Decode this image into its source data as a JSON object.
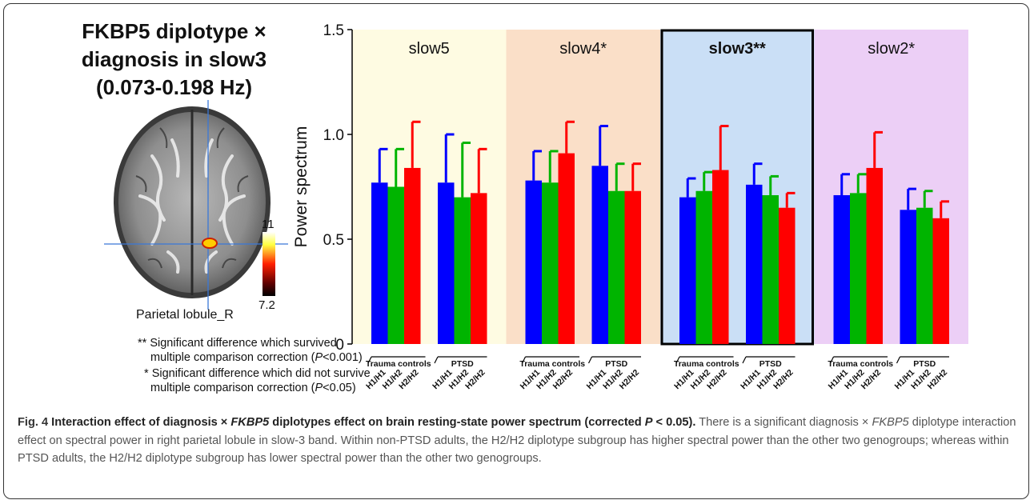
{
  "panel_title": [
    "FKBP5 diplotype ×",
    "diagnosis in slow3",
    "(0.073-0.198 Hz)"
  ],
  "region_label": "Parietal lobule_R",
  "colorbar": {
    "max": "11",
    "min": "7.2"
  },
  "notes": [
    {
      "mark": "**",
      "line1": "Significant difference which survived",
      "line2_prefix": "multiple comparison correction (",
      "p_symbol": "P",
      "p_rest": "<0.001)"
    },
    {
      "mark": "*",
      "line1": "Significant difference which did not survive",
      "line2_prefix": "multiple comparison correction (",
      "p_symbol": "P",
      "p_rest": "<0.05)"
    }
  ],
  "chart_data": {
    "type": "bar",
    "ylabel": "Power spectrum",
    "ylim": [
      0,
      1.5
    ],
    "yticks": [
      "0",
      "0.5",
      "1.0",
      "1.5"
    ],
    "group_labels": [
      "Trauma controls",
      "PTSD"
    ],
    "categories": [
      "H1/H1",
      "H1/H2",
      "H2/H2"
    ],
    "series_colors": [
      "#0000ff",
      "#00b400",
      "#ff0000"
    ],
    "panels": [
      {
        "band": "slow5",
        "marker": "",
        "highlight": false,
        "bg": "#fefbe2",
        "values": [
          [
            0.77,
            0.75,
            0.84
          ],
          [
            0.77,
            0.7,
            0.72
          ]
        ],
        "errors": [
          [
            0.16,
            0.18,
            0.22
          ],
          [
            0.23,
            0.26,
            0.21
          ]
        ]
      },
      {
        "band": "slow4",
        "marker": "*",
        "highlight": false,
        "bg": "#fadfc8",
        "values": [
          [
            0.78,
            0.77,
            0.91
          ],
          [
            0.85,
            0.73,
            0.73
          ]
        ],
        "errors": [
          [
            0.14,
            0.15,
            0.15
          ],
          [
            0.19,
            0.13,
            0.13
          ]
        ]
      },
      {
        "band": "slow3",
        "marker": "**",
        "highlight": true,
        "bg": "#cadff6",
        "values": [
          [
            0.7,
            0.73,
            0.83
          ],
          [
            0.76,
            0.71,
            0.65
          ]
        ],
        "errors": [
          [
            0.09,
            0.09,
            0.21
          ],
          [
            0.1,
            0.09,
            0.07
          ]
        ]
      },
      {
        "band": "slow2",
        "marker": "*",
        "highlight": false,
        "bg": "#eccff6",
        "values": [
          [
            0.71,
            0.72,
            0.84
          ],
          [
            0.64,
            0.65,
            0.6
          ]
        ],
        "errors": [
          [
            0.1,
            0.09,
            0.17
          ],
          [
            0.1,
            0.08,
            0.08
          ]
        ]
      }
    ]
  },
  "caption": {
    "fig_label": "Fig. 4",
    "bold_pre": "Interaction effect of diagnosis × ",
    "bold_gene": "FKBP5",
    "bold_mid": " diplotypes effect on brain resting-state power spectrum (corrected ",
    "bold_p": "P",
    "bold_post": " < 0.05).",
    "text_pre": " There is a significant diagnosis × ",
    "text_gene": "FKBP5",
    "text_post": " diplotype interaction effect on spectral power in right parietal lobule in slow-3 band. Within non-PTSD adults, the H2/H2 diplotype subgroup has higher spectral power than the other two genogroups; whereas within PTSD adults, the H2/H2 diplotype subgroup has lower spectral power than the other two genogroups."
  }
}
